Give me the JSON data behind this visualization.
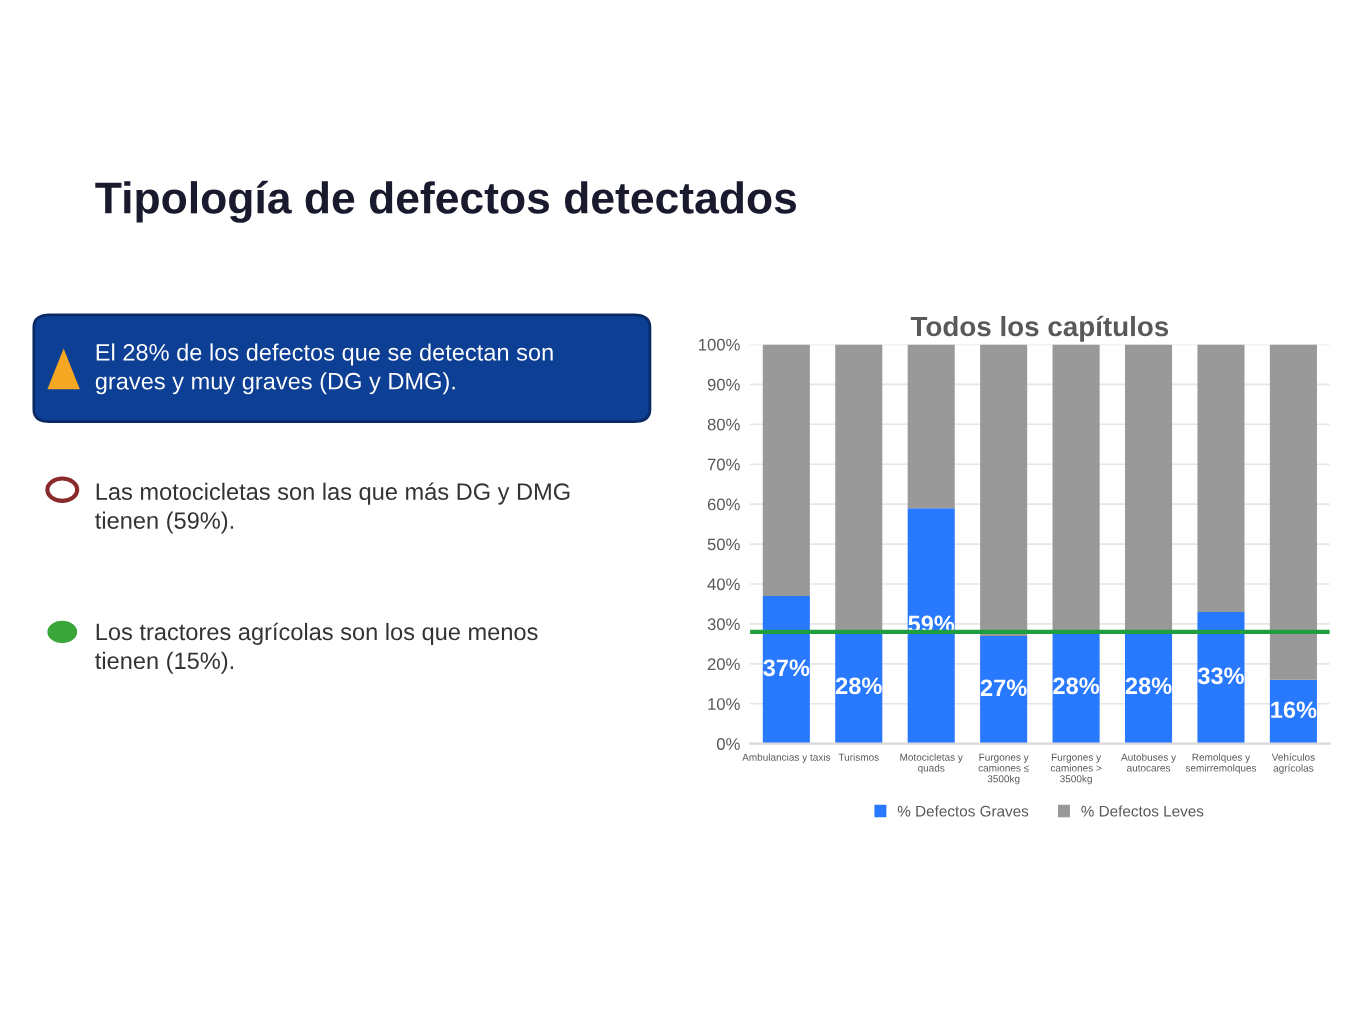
{
  "chart_data": {
    "type": "bar",
    "stacked": true,
    "title": "Tipología de defectos detectados",
    "subtitle": "Todos los capítulos",
    "categories": [
      "Ambulancias y taxis",
      "Turismos",
      "Motocicletas y\nquads",
      "Furgones y\ncamiones ≤\n3500kg",
      "Furgones y\ncamiones >\n3500kg",
      "Autobuses y\nautocares",
      "Remolques y\nsemirremolques",
      "Vehículos\nagrícolas"
    ],
    "series": [
      {
        "name": "% Defectos Graves",
        "color": "#2979ff",
        "values": [
          37,
          28,
          59,
          27,
          28,
          28,
          33,
          16
        ],
        "value_labels": [
          "37%",
          "28%",
          "59%",
          "27%",
          "28%",
          "28%",
          "33%",
          "16%"
        ]
      },
      {
        "name": "% Defectos Leves",
        "color": "#999999",
        "values": [
          63,
          72,
          41,
          73,
          72,
          72,
          67,
          84
        ]
      }
    ],
    "ylim": [
      0,
      100
    ],
    "yticks": [
      {
        "value": 0,
        "label": "0%"
      },
      {
        "value": 10,
        "label": "10%"
      },
      {
        "value": 20,
        "label": "20%"
      },
      {
        "value": 30,
        "label": "30%"
      },
      {
        "value": 40,
        "label": "40%"
      },
      {
        "value": 50,
        "label": "50%"
      },
      {
        "value": 60,
        "label": "60%"
      },
      {
        "value": 70,
        "label": "70%"
      },
      {
        "value": 80,
        "label": "80%"
      },
      {
        "value": 90,
        "label": "90%"
      },
      {
        "value": 100,
        "label": "100%"
      }
    ],
    "grid": "y",
    "legend": "bottom",
    "ref_lines": [
      {
        "axis": "y",
        "value": 28,
        "color": "#1e9e3e"
      }
    ],
    "annotations": [
      "El 28% de los defectos que se detectan son\ngraves y muy graves (DG y DMG).",
      "Las motocicletas son las que más DG y DMG\ntienen (59%).",
      "Los tractores agrícolas son los que menos\ntienen (15%)."
    ]
  }
}
